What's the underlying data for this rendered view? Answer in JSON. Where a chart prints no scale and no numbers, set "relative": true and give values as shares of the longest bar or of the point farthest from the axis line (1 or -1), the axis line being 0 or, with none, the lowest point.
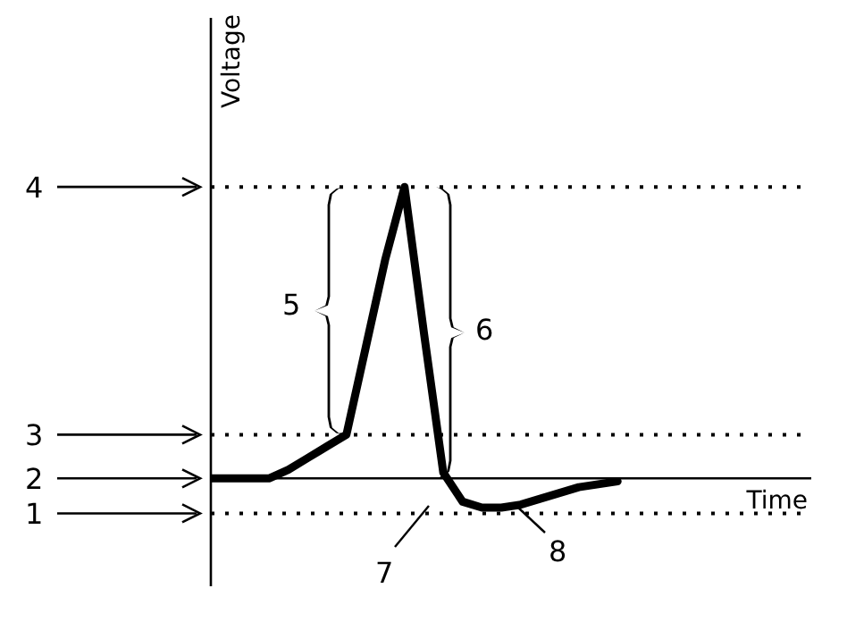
{
  "chart_data": {
    "type": "line",
    "relative": true,
    "xlabel": "Time",
    "ylabel": "Voltage",
    "categories": [
      null,
      null,
      null,
      null,
      null,
      null,
      null,
      null,
      null,
      null,
      null,
      null,
      null,
      null,
      null,
      null,
      null,
      null,
      null,
      null,
      null,
      null
    ],
    "series": [
      {
        "color": "#000000",
        "values": [
          0,
          0,
          0,
          0,
          0.03,
          0.07,
          0.11,
          0.15,
          0.45,
          0.75,
          1,
          0.5,
          0.02,
          -0.08,
          -0.1,
          -0.1,
          -0.09,
          -0.07,
          -0.05,
          -0.03,
          -0.02,
          -0.01
        ]
      }
    ],
    "ref_lines": [
      {
        "axis": "y",
        "value": 1,
        "color": "#000000",
        "line_style": "dotted"
      },
      {
        "axis": "y",
        "value": 0.15,
        "color": "#000000",
        "line_style": "dotted"
      },
      {
        "axis": "y",
        "value": 0,
        "color": "#000000",
        "line_style": "solid"
      },
      {
        "axis": "y",
        "value": -0.12,
        "color": "#000000",
        "line_style": "dotted"
      }
    ],
    "annotations": [
      "4",
      "3",
      "2",
      "1",
      "5",
      "6",
      "7",
      "8"
    ],
    "grid": false,
    "legend": false,
    "marker": "none",
    "line_style": "solid"
  }
}
